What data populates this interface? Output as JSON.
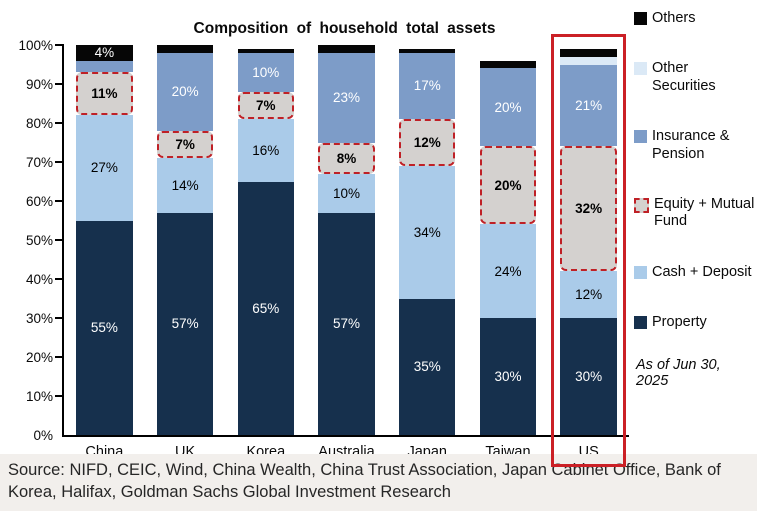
{
  "title": "Composition of household total assets",
  "annotation": "As of Jun 30, 2025",
  "source": "Source: NIFD, CEIC, Wind, China Wealth, China Trust Association, Japan Cabinet Office, Bank of Korea, Halifax, Goldman Sachs Global Investment Research",
  "highlight": {
    "country": "US",
    "color": "#cb2026"
  },
  "chart_data": {
    "type": "bar",
    "stacked": true,
    "title": "Composition of household total assets",
    "categories": [
      "China",
      "UK",
      "Korea",
      "Australia",
      "Japan",
      "Taiwan",
      "US"
    ],
    "ylim": [
      0,
      100
    ],
    "yticks": [
      "0%",
      "10%",
      "20%",
      "30%",
      "40%",
      "50%",
      "60%",
      "70%",
      "80%",
      "90%",
      "100%"
    ],
    "legend_position": "right",
    "series": [
      {
        "name": "Property",
        "color": "#16304d",
        "label_color": "#ffffff",
        "label_bold": false,
        "dashed": false,
        "values": [
          55,
          57,
          65,
          57,
          35,
          30,
          30
        ],
        "labels": [
          "55%",
          "57%",
          "65%",
          "57%",
          "35%",
          "30%",
          "30%"
        ]
      },
      {
        "name": "Cash + Deposit",
        "color": "#aacbe9",
        "label_color": "#000000",
        "label_bold": false,
        "dashed": false,
        "values": [
          27,
          14,
          16,
          10,
          34,
          24,
          12
        ],
        "labels": [
          "27%",
          "14%",
          "16%",
          "10%",
          "34%",
          "24%",
          "12%"
        ]
      },
      {
        "name": "Equity + Mutual Fund",
        "color": "#d4d1cf",
        "label_color": "#000000",
        "label_bold": true,
        "dashed": true,
        "values": [
          11,
          7,
          7,
          8,
          12,
          20,
          32
        ],
        "labels": [
          "11%",
          "7%",
          "7%",
          "8%",
          "12%",
          "20%",
          "32%"
        ]
      },
      {
        "name": "Insurance & Pension",
        "color": "#7d9cc8",
        "label_color": "#ffffff",
        "label_bold": false,
        "dashed": false,
        "values": [
          3,
          20,
          10,
          23,
          17,
          20,
          21
        ],
        "labels": [
          "",
          "20%",
          "10%",
          "23%",
          "17%",
          "20%",
          "21%"
        ]
      },
      {
        "name": "Other Securities",
        "color": "#dbe9f6",
        "label_color": "#000000",
        "label_bold": false,
        "dashed": false,
        "values": [
          0,
          0,
          0,
          0,
          0,
          0,
          2
        ],
        "labels": [
          "",
          "",
          "",
          "",
          "",
          "",
          ""
        ]
      },
      {
        "name": "Others",
        "color": "#060606",
        "label_color": "#ffffff",
        "label_bold": false,
        "dashed": false,
        "values": [
          4,
          2,
          1,
          2,
          1,
          2,
          2
        ],
        "labels": [
          "4%",
          "",
          "",
          "",
          "",
          "",
          ""
        ]
      }
    ],
    "legend": [
      {
        "label": "Others",
        "color": "#060606",
        "dashed": false
      },
      {
        "label": "Other Securities",
        "color": "#dbe9f6",
        "dashed": false
      },
      {
        "label": "Insurance & Pension",
        "color": "#7d9cc8",
        "dashed": false
      },
      {
        "label": "Equity + Mutual Fund",
        "color": "#d4d1cf",
        "dashed": true
      },
      {
        "label": "Cash + Deposit",
        "color": "#aacbe9",
        "dashed": false
      },
      {
        "label": "Property",
        "color": "#16304d",
        "dashed": false
      }
    ]
  }
}
